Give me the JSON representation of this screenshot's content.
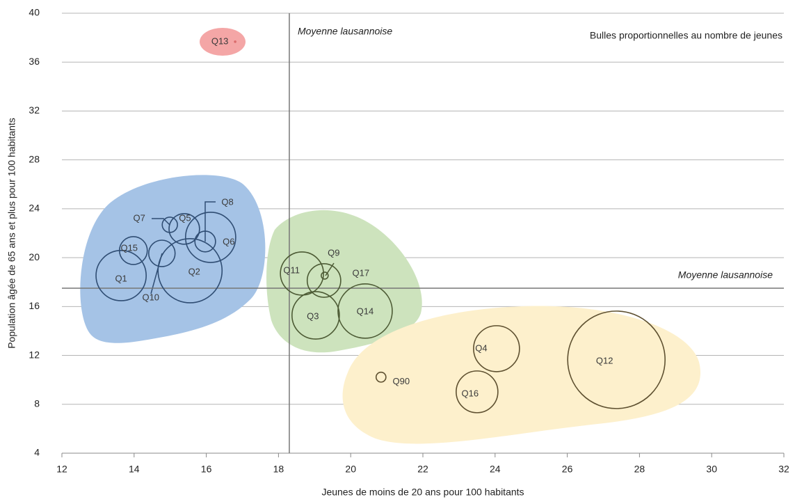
{
  "chart_data": {
    "type": "bubble",
    "xlabel": "Jeunes de moins de 20 ans pour 100 habitants",
    "ylabel": "Population âgée de 65 ans et plus pour 100 habitants",
    "annotation": "Bulles proportionnelles au nombre de jeunes",
    "xlim": [
      12,
      32
    ],
    "xticks": [
      12,
      14,
      16,
      18,
      20,
      22,
      24,
      26,
      28,
      30,
      32
    ],
    "ylim": [
      4,
      40
    ],
    "yticks": [
      4,
      8,
      12,
      16,
      20,
      24,
      28,
      32,
      36,
      40
    ],
    "grid": true,
    "reference_lines": [
      {
        "axis": "x",
        "value": 18.3,
        "label": "Moyenne lausannoise"
      },
      {
        "axis": "y",
        "value": 17.5,
        "label": "Moyenne lausannoise"
      }
    ],
    "points": [
      {
        "name": "Q1",
        "x": 13.64,
        "y": 18.53,
        "size": 130,
        "color": "#2f4d73"
      },
      {
        "name": "Q15",
        "x": 13.98,
        "y": 20.58,
        "size": 40,
        "color": "#2f4d73"
      },
      {
        "name": "Q10",
        "x": 14.77,
        "y": 20.35,
        "size": 36,
        "color": "#2f4d73"
      },
      {
        "name": "Q2",
        "x": 15.55,
        "y": 18.93,
        "size": 212,
        "color": "#2f4d73"
      },
      {
        "name": "Q7",
        "x": 14.99,
        "y": 22.69,
        "size": 12,
        "color": "#2f4d73"
      },
      {
        "name": "Q5",
        "x": 15.39,
        "y": 22.35,
        "size": 48,
        "color": "#2f4d73"
      },
      {
        "name": "Q6",
        "x": 16.12,
        "y": 21.66,
        "size": 130,
        "color": "#2f4d73"
      },
      {
        "name": "Q8",
        "x": 15.97,
        "y": 21.32,
        "size": 22,
        "color": "#2f4d73"
      },
      {
        "name": "Q13",
        "x": 16.8,
        "y": 37.67,
        "size": 0.1,
        "color": "#d96a6a"
      },
      {
        "name": "Q11",
        "x": 18.65,
        "y": 18.7,
        "size": 96,
        "color": "#4c5a34"
      },
      {
        "name": "Q9",
        "x": 19.28,
        "y": 18.53,
        "size": 2.5,
        "color": "#4c5a34"
      },
      {
        "name": "Q17",
        "x": 19.26,
        "y": 18.13,
        "size": 58,
        "color": "#4c5a34"
      },
      {
        "name": "Q3",
        "x": 19.03,
        "y": 15.28,
        "size": 116,
        "color": "#4c5a34"
      },
      {
        "name": "Q14",
        "x": 20.4,
        "y": 15.63,
        "size": 152,
        "color": "#4c5a34"
      },
      {
        "name": "Q90",
        "x": 20.84,
        "y": 10.22,
        "size": 5,
        "color": "#5e5030"
      },
      {
        "name": "Q4",
        "x": 24.04,
        "y": 12.55,
        "size": 109,
        "color": "#5e5030"
      },
      {
        "name": "Q16",
        "x": 23.5,
        "y": 9.02,
        "size": 90,
        "color": "#5e5030"
      },
      {
        "name": "Q12",
        "x": 27.36,
        "y": 11.64,
        "size": 490,
        "color": "#5e5030"
      }
    ]
  }
}
